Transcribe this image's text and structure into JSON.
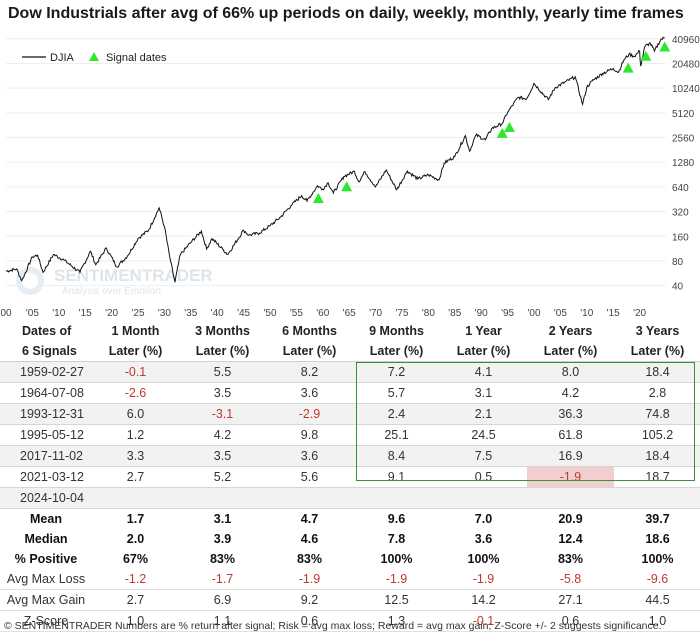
{
  "title": "Dow Industrials after avg of 66% up periods on daily, weekly, monthly, yearly time frames",
  "chart_data": {
    "type": "line",
    "scale": "log",
    "legend": [
      "DJIA",
      "Signal dates"
    ],
    "watermark": {
      "brand": "SENTIMENTRADER",
      "tagline": "Analysis over Emotion"
    },
    "y_ticks": [
      40960,
      20480,
      10240,
      5120,
      2560,
      1280,
      640,
      320,
      160,
      80,
      40
    ],
    "y_tick_labels": [
      "40960",
      "20480",
      "10240",
      "5120",
      "2560",
      "1280",
      "640",
      "320",
      "160",
      "80",
      "40"
    ],
    "x_tick_years": [
      1900,
      1905,
      1910,
      1915,
      1920,
      1925,
      1930,
      1935,
      1940,
      1945,
      1950,
      1955,
      1960,
      1965,
      1970,
      1975,
      1980,
      1985,
      1990,
      1995,
      2000,
      2005,
      2010,
      2015,
      2020
    ],
    "x_tick_labels": [
      "00",
      "'05",
      "'10",
      "'15",
      "'20",
      "'25",
      "'30",
      "'35",
      "'40",
      "'45",
      "'50",
      "'55",
      "'60",
      "'65",
      "'70",
      "'75",
      "'80",
      "'85",
      "'90",
      "'95",
      "'00",
      "'05",
      "'10",
      "'15",
      "'20"
    ],
    "xlim": [
      1900,
      2025
    ],
    "ylim": [
      26,
      57000
    ],
    "series_points": [
      [
        1900,
        60
      ],
      [
        1902,
        64
      ],
      [
        1903,
        46
      ],
      [
        1905,
        90
      ],
      [
        1906,
        94
      ],
      [
        1907,
        58
      ],
      [
        1909,
        96
      ],
      [
        1911,
        82
      ],
      [
        1914,
        58
      ],
      [
        1916,
        105
      ],
      [
        1917,
        72
      ],
      [
        1919,
        115
      ],
      [
        1921,
        68
      ],
      [
        1923,
        92
      ],
      [
        1925,
        150
      ],
      [
        1927,
        190
      ],
      [
        1929,
        355
      ],
      [
        1930,
        210
      ],
      [
        1931,
        90
      ],
      [
        1932,
        44
      ],
      [
        1933,
        95
      ],
      [
        1935,
        135
      ],
      [
        1937,
        185
      ],
      [
        1938,
        112
      ],
      [
        1939,
        150
      ],
      [
        1941,
        112
      ],
      [
        1942,
        96
      ],
      [
        1945,
        190
      ],
      [
        1946,
        165
      ],
      [
        1948,
        175
      ],
      [
        1950,
        215
      ],
      [
        1952,
        275
      ],
      [
        1954,
        380
      ],
      [
        1956,
        500
      ],
      [
        1957,
        430
      ],
      [
        1959,
        660
      ],
      [
        1960,
        600
      ],
      [
        1961,
        720
      ],
      [
        1962,
        540
      ],
      [
        1964,
        860
      ],
      [
        1966,
        990
      ],
      [
        1966.8,
        740
      ],
      [
        1968,
        980
      ],
      [
        1970,
        640
      ],
      [
        1972,
        1030
      ],
      [
        1974,
        590
      ],
      [
        1976,
        1000
      ],
      [
        1978,
        800
      ],
      [
        1980,
        900
      ],
      [
        1982,
        780
      ],
      [
        1983,
        1250
      ],
      [
        1985,
        1500
      ],
      [
        1987,
        2700
      ],
      [
        1987.8,
        1750
      ],
      [
        1989,
        2750
      ],
      [
        1990.8,
        2400
      ],
      [
        1992,
        3300
      ],
      [
        1994,
        3800
      ],
      [
        1995,
        5200
      ],
      [
        1997,
        7900
      ],
      [
        1998.6,
        7600
      ],
      [
        2000,
        11700
      ],
      [
        2002.7,
        7400
      ],
      [
        2004,
        10400
      ],
      [
        2007.8,
        14100
      ],
      [
        2009.2,
        6500
      ],
      [
        2010,
        10500
      ],
      [
        2011,
        12500
      ],
      [
        2013,
        15500
      ],
      [
        2015,
        17800
      ],
      [
        2016,
        16000
      ],
      [
        2017,
        22500
      ],
      [
        2018,
        26500
      ],
      [
        2019,
        25000
      ],
      [
        2020,
        29000
      ],
      [
        2020.2,
        19000
      ],
      [
        2021,
        33000
      ],
      [
        2022,
        36300
      ],
      [
        2022.8,
        29000
      ],
      [
        2024,
        40000
      ],
      [
        2024.75,
        42300
      ]
    ],
    "signals": [
      {
        "year": 1959.16,
        "value": 604
      },
      {
        "year": 1964.52,
        "value": 840
      },
      {
        "year": 1993.99,
        "value": 3754
      },
      {
        "year": 1995.36,
        "value": 4430
      },
      {
        "year": 2017.84,
        "value": 23435
      },
      {
        "year": 2021.19,
        "value": 32779
      },
      {
        "year": 2024.76,
        "value": 42500
      }
    ]
  },
  "table": {
    "headers": [
      [
        "Dates of",
        "6 Signals"
      ],
      [
        "1 Month",
        "Later (%)"
      ],
      [
        "3 Months",
        "Later (%)"
      ],
      [
        "6 Months",
        "Later (%)"
      ],
      [
        "9 Months",
        "Later (%)"
      ],
      [
        "1 Year",
        "Later (%)"
      ],
      [
        "2 Years",
        "Later (%)"
      ],
      [
        "3 Years",
        "Later (%)"
      ]
    ],
    "signal_rows": [
      [
        "1959-02-27",
        "-0.1",
        "5.5",
        "8.2",
        "7.2",
        "4.1",
        "8.0",
        "18.4"
      ],
      [
        "1964-07-08",
        "-2.6",
        "3.5",
        "3.6",
        "5.7",
        "3.1",
        "4.2",
        "2.8"
      ],
      [
        "1993-12-31",
        "6.0",
        "-3.1",
        "-2.9",
        "2.4",
        "2.1",
        "36.3",
        "74.8"
      ],
      [
        "1995-05-12",
        "1.2",
        "4.2",
        "9.8",
        "25.1",
        "24.5",
        "61.8",
        "105.2"
      ],
      [
        "2017-11-02",
        "3.3",
        "3.5",
        "3.6",
        "8.4",
        "7.5",
        "16.9",
        "18.4"
      ],
      [
        "2021-03-12",
        "2.7",
        "5.2",
        "5.6",
        "9.1",
        "0.5",
        "-1.9",
        "18.7"
      ],
      [
        "2024-10-04",
        "",
        "",
        "",
        "",
        "",
        "",
        ""
      ]
    ],
    "stat_rows": [
      [
        "Mean",
        "1.7",
        "3.1",
        "4.7",
        "9.6",
        "7.0",
        "20.9",
        "39.7"
      ],
      [
        "Median",
        "2.0",
        "3.9",
        "4.6",
        "7.8",
        "3.6",
        "12.4",
        "18.6"
      ],
      [
        "% Positive",
        "67%",
        "83%",
        "83%",
        "100%",
        "100%",
        "83%",
        "100%"
      ],
      [
        "Avg Max Loss",
        "-1.2",
        "-1.7",
        "-1.9",
        "-1.9",
        "-1.9",
        "-5.8",
        "-9.6"
      ],
      [
        "Avg Max Gain",
        "2.7",
        "6.9",
        "9.2",
        "12.5",
        "14.2",
        "27.1",
        "44.5"
      ],
      [
        "Z-Score",
        "1.0",
        "1.1",
        "0.6",
        "1.3",
        "-0.1",
        "0.6",
        "1.0"
      ]
    ]
  },
  "footer": "© SENTIMENTRADER  Numbers are % return after signal; Risk = avg max loss; Reward = avg max gain; Z-Score +/- 2 suggests significance.",
  "colors": {
    "line": "#111111",
    "signal": "#2ee82e",
    "negative": "#c0392b",
    "highlight": "#f1cfcf",
    "box": "#3a8f3a"
  }
}
